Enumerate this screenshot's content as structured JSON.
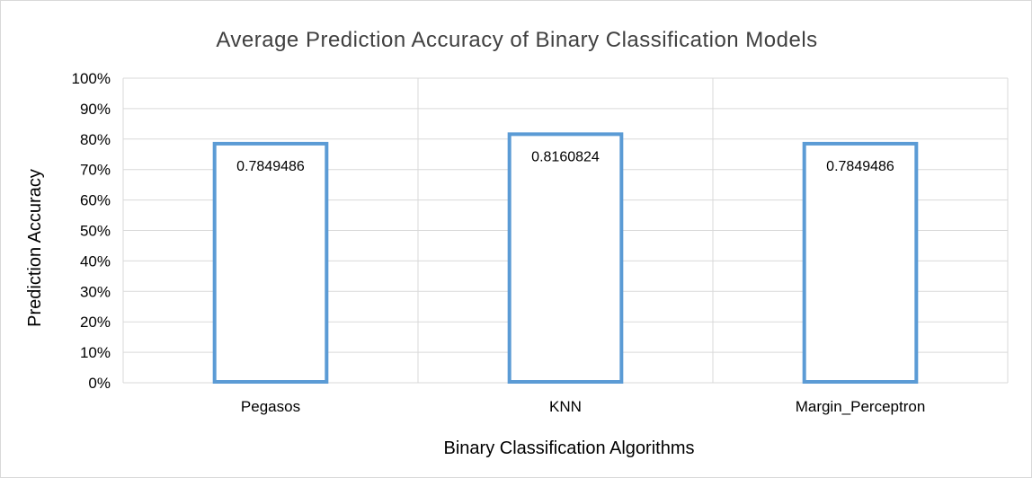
{
  "chart_data": {
    "type": "bar",
    "title": "Average Prediction Accuracy of Binary Classification Models",
    "xlabel": "Binary Classification Algorithms",
    "ylabel": "Prediction Accuracy",
    "categories": [
      "Pegasos",
      "KNN",
      "Margin_Perceptron"
    ],
    "values": [
      0.7849486,
      0.8160824,
      0.7849486
    ],
    "data_labels": [
      "0.7849486",
      "0.8160824",
      "0.7849486"
    ],
    "ylim": [
      0,
      1
    ],
    "yticks": [
      0,
      0.1,
      0.2,
      0.3,
      0.4,
      0.5,
      0.6,
      0.7,
      0.8,
      0.9,
      1.0
    ],
    "ytick_labels": [
      "0%",
      "10%",
      "20%",
      "30%",
      "40%",
      "50%",
      "60%",
      "70%",
      "80%",
      "90%",
      "100%"
    ],
    "grid": true,
    "bar_style": "outline",
    "bar_color": "#5b9bd5",
    "grid_color": "#d9d9d9"
  }
}
